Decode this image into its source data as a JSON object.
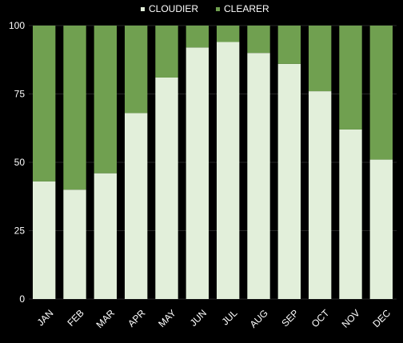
{
  "chart_data": {
    "type": "bar",
    "stacked": true,
    "percent": true,
    "categories": [
      "JAN",
      "FEB",
      "MAR",
      "APR",
      "MAY",
      "JUN",
      "JUL",
      "AUG",
      "SEP",
      "OCT",
      "NOV",
      "DEC"
    ],
    "series": [
      {
        "name": "CLOUDIER",
        "color": "#e2efda",
        "values": [
          43,
          40,
          46,
          68,
          81,
          92,
          94,
          90,
          86,
          76,
          62,
          51
        ]
      },
      {
        "name": "CLEARER",
        "color": "#70a050",
        "values": [
          57,
          60,
          54,
          32,
          19,
          8,
          6,
          10,
          14,
          24,
          38,
          49
        ]
      }
    ],
    "ylim": [
      0,
      100
    ],
    "yticks": [
      0,
      25,
      50,
      75,
      100
    ],
    "title": "",
    "xlabel": "",
    "ylabel": "",
    "grid": true,
    "legend": "top-center",
    "background": "#000000",
    "gridline_color": "#262626",
    "text_color": "#ffffff"
  }
}
